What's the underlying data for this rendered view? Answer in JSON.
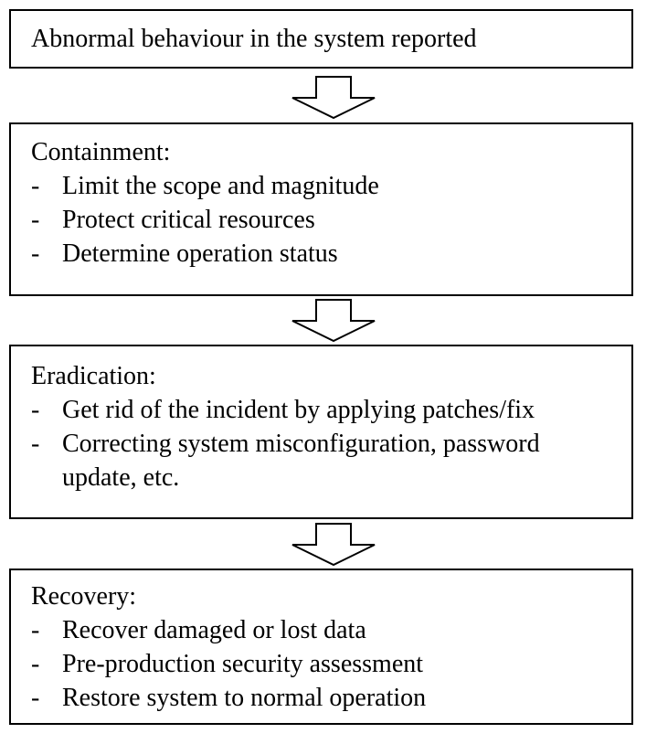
{
  "diagram": {
    "start": {
      "text": "Abnormal behaviour in the system reported"
    },
    "containment": {
      "title": "Containment:",
      "items": [
        "Limit the scope and magnitude",
        "Protect critical resources",
        "Determine operation status"
      ]
    },
    "eradication": {
      "title": "Eradication:",
      "items": [
        "Get rid of the incident by applying patches/fix",
        "Correcting system misconfiguration, password",
        "update, etc."
      ]
    },
    "recovery": {
      "title": "Recovery:",
      "items": [
        "Recover damaged or lost data",
        "Pre-production security assessment",
        "Restore system to normal operation"
      ]
    },
    "bullet": "-"
  }
}
